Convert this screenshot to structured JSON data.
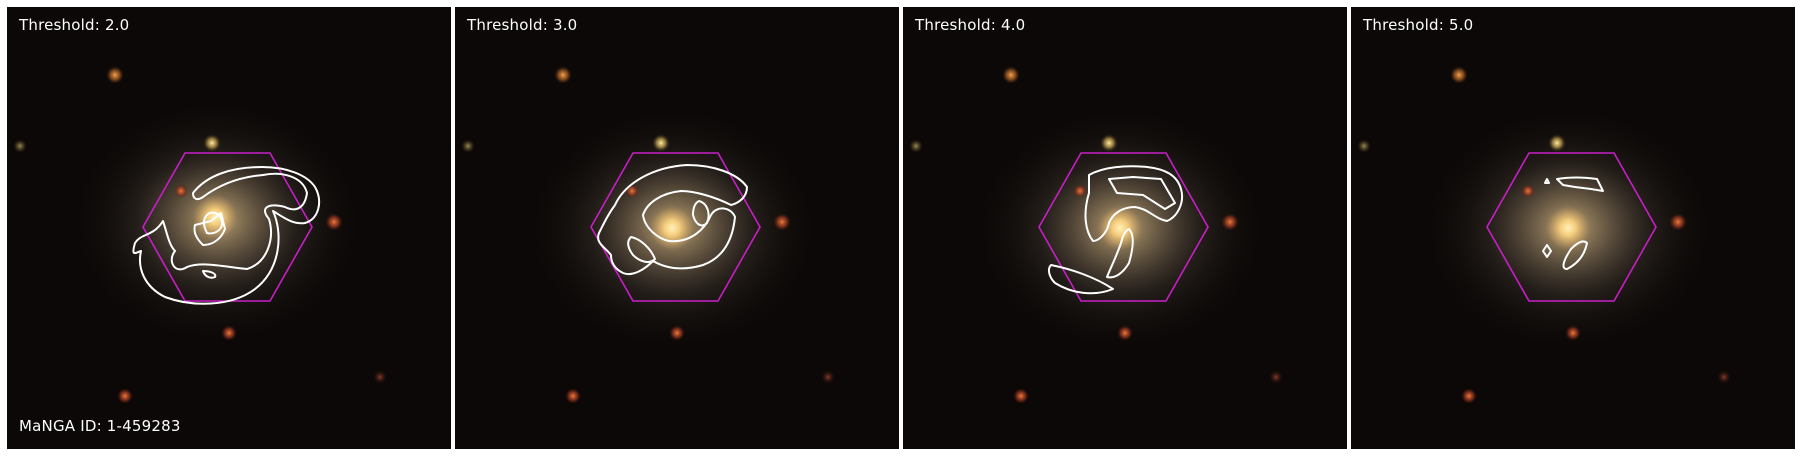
{
  "figure": {
    "manga_id_label": "MaNGA ID: 1-459283",
    "colors": {
      "background": "#0b0807",
      "hexagon": "#c81ec8",
      "contour": "#ffffff",
      "text": "#ffffff"
    },
    "panels": [
      {
        "label": "Threshold: 2.0"
      },
      {
        "label": "Threshold: 3.0"
      },
      {
        "label": "Threshold: 4.0"
      },
      {
        "label": "Threshold: 5.0"
      }
    ]
  }
}
